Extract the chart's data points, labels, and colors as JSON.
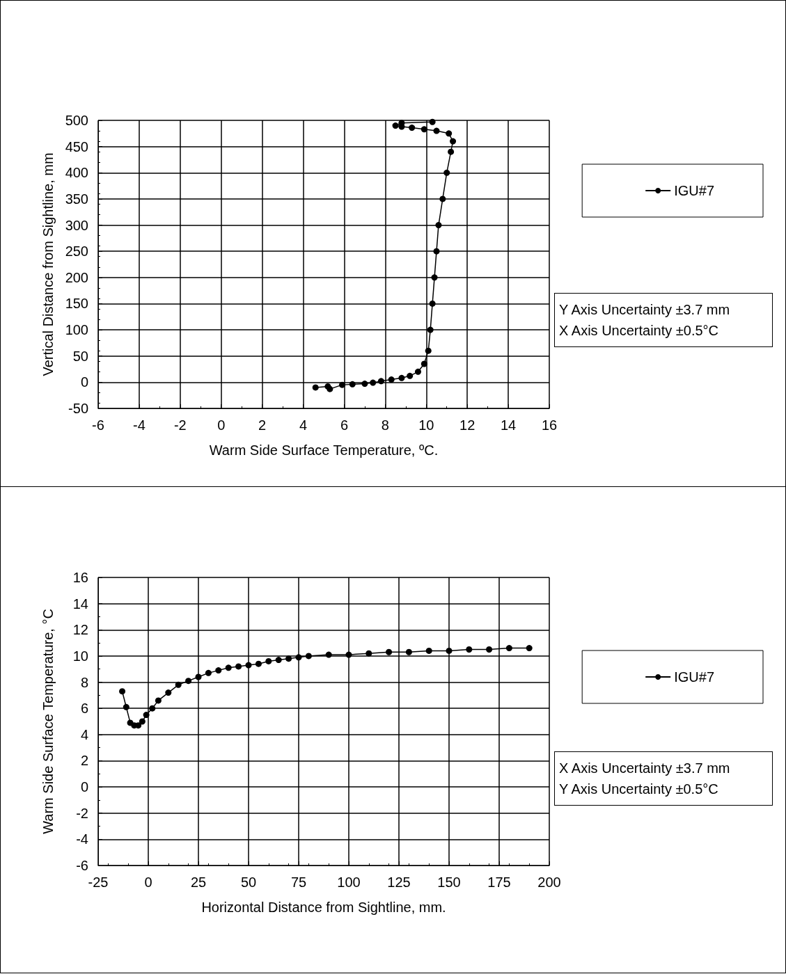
{
  "chart_data": [
    {
      "type": "line",
      "xlabel": "Warm Side Surface Temperature, ºC.",
      "ylabel": "Vertical Distance from Sightline, mm",
      "xlim": [
        -6,
        16
      ],
      "xticks": [
        -6,
        -4,
        -2,
        0,
        2,
        4,
        6,
        8,
        10,
        12,
        14,
        16
      ],
      "ylim": [
        -50,
        500
      ],
      "yticks": [
        -50,
        0,
        50,
        100,
        150,
        200,
        250,
        300,
        350,
        400,
        450,
        500
      ],
      "grid": true,
      "legend": "right",
      "marker": "circle",
      "annotations": [
        "Y Axis Uncertainty ±3.7 mm",
        "X Axis Uncertainty ±0.5°C"
      ],
      "series": [
        {
          "name": "IGU#7",
          "color": "#000000",
          "x": [
            4.6,
            5.2,
            5.3,
            5.9,
            6.4,
            7.0,
            7.4,
            7.8,
            8.3,
            8.8,
            9.2,
            9.6,
            9.9,
            10.1,
            10.2,
            10.3,
            10.4,
            10.5,
            10.6,
            10.8,
            11.0,
            11.2,
            11.3,
            11.1,
            10.5,
            9.9,
            9.3,
            8.8,
            8.5,
            8.8,
            10.3
          ],
          "values": [
            -10,
            -8,
            -13,
            -5,
            -4,
            -3,
            -1,
            2,
            5,
            8,
            12,
            20,
            35,
            60,
            100,
            150,
            200,
            250,
            300,
            350,
            400,
            440,
            460,
            475,
            480,
            483,
            486,
            488,
            490,
            495,
            497
          ]
        }
      ]
    },
    {
      "type": "line",
      "xlabel": "Horizontal Distance from Sightline, mm.",
      "ylabel": "Warm Side Surface Temperature, °C",
      "xlim": [
        -25,
        200
      ],
      "xticks": [
        -25,
        0,
        25,
        50,
        75,
        100,
        125,
        150,
        175,
        200
      ],
      "ylim": [
        -6,
        16
      ],
      "yticks": [
        -6,
        -4,
        -2,
        0,
        2,
        4,
        6,
        8,
        10,
        12,
        14,
        16
      ],
      "grid": true,
      "legend": "right",
      "marker": "circle",
      "annotations": [
        "X Axis Uncertainty ±3.7 mm",
        "Y Axis Uncertainty ±0.5°C"
      ],
      "series": [
        {
          "name": "IGU#7",
          "color": "#000000",
          "x": [
            -13,
            -11,
            -9,
            -7,
            -5,
            -3,
            -1,
            2,
            5,
            10,
            15,
            20,
            25,
            30,
            35,
            40,
            45,
            50,
            55,
            60,
            65,
            70,
            75,
            80,
            90,
            100,
            110,
            120,
            130,
            140,
            150,
            160,
            170,
            180,
            190
          ],
          "values": [
            7.3,
            6.1,
            4.9,
            4.7,
            4.7,
            5.0,
            5.5,
            6.0,
            6.6,
            7.2,
            7.8,
            8.1,
            8.4,
            8.7,
            8.9,
            9.1,
            9.2,
            9.3,
            9.4,
            9.6,
            9.7,
            9.8,
            9.9,
            10.0,
            10.1,
            10.1,
            10.2,
            10.3,
            10.3,
            10.4,
            10.4,
            10.5,
            10.5,
            10.6,
            10.6
          ]
        }
      ]
    }
  ]
}
